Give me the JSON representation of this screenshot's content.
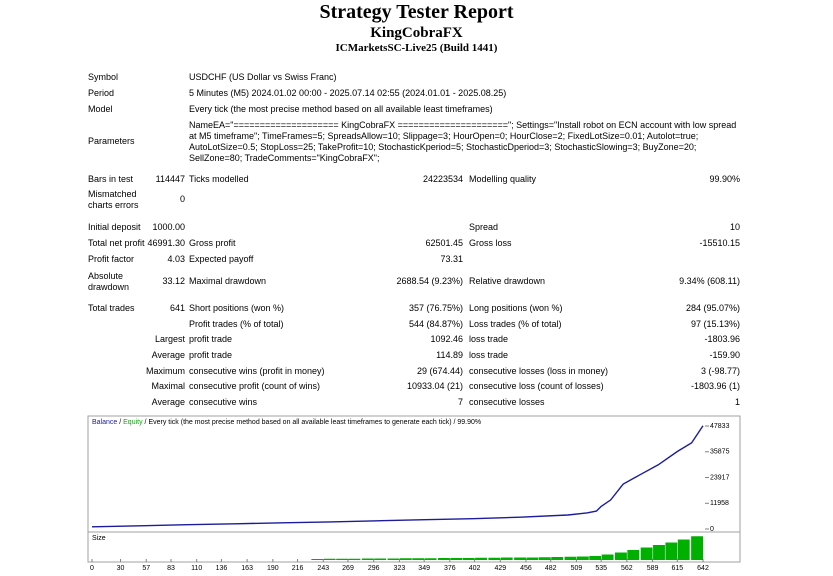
{
  "header": {
    "title": "Strategy Tester Report",
    "expert": "KingCobraFX",
    "server": "ICMarketsSC-Live25 (Build 1441)"
  },
  "table": {
    "rows": [
      {
        "label": "Symbol",
        "text": "USDCHF (US Dollar vs Swiss Franc)"
      },
      {
        "label": "Period",
        "text": "5 Minutes (M5) 2024.01.02 00:00 - 2025.07.14 02:55 (2024.01.01 - 2025.08.25)"
      },
      {
        "label": "Model",
        "text": "Every tick (the most precise method based on all available least timeframes)"
      },
      {
        "label": "Parameters",
        "text": "NameEA=\"==================== KingCobraFX =====================\"; Settings=\"Install robot on ECN account with low spread at M5 timeframe\"; TimeFrames=5; SpreadsAllow=10; Slippage=3; HourOpen=0; HourClose=2; FixedLotSize=0.01; Autolot=true; AutoLotSize=0.5; StopLoss=25; TakeProfit=10; StochasticKperiod=5; StochasticDperiod=3; StochasticSlowing=3; BuyZone=20; SellZone=80; TradeComments=\"KingCobraFX\";"
      },
      {
        "label": "Bars in test",
        "value": "114447",
        "label2": "Ticks modelled",
        "value2": "24223534",
        "label3": "Modelling quality",
        "value3": "99.90%"
      },
      {
        "label": "Mismatched charts errors",
        "value": "0"
      },
      {
        "label": "Initial deposit",
        "value": "1000.00",
        "label3": "Spread",
        "value3": "10"
      },
      {
        "label": "Total net profit",
        "value": "46991.30",
        "label2": "Gross profit",
        "value2": "62501.45",
        "label3": "Gross loss",
        "value3": "-15510.15"
      },
      {
        "label": "Profit factor",
        "value": "4.03",
        "label2": "Expected payoff",
        "value2": "73.31"
      },
      {
        "label": "Absolute drawdown",
        "value": "33.12",
        "label2": "Maximal drawdown",
        "value2": "2688.54 (9.23%)",
        "label3": "Relative drawdown",
        "value3": "9.34% (608.11)"
      },
      {
        "label": "Total trades",
        "value": "641",
        "label2": "Short positions (won %)",
        "value2": "357 (76.75%)",
        "label3": "Long positions (won %)",
        "value3": "284 (95.07%)"
      },
      {
        "label2": "Profit trades (% of total)",
        "value2": "544 (84.87%)",
        "label3": "Loss trades (% of total)",
        "value3": "97 (15.13%)"
      },
      {
        "prefix": "Largest",
        "label2": "profit trade",
        "value2": "1092.46",
        "label3": "loss trade",
        "value3": "-1803.96"
      },
      {
        "prefix": "Average",
        "label2": "profit trade",
        "value2": "114.89",
        "label3": "loss trade",
        "value3": "-159.90"
      },
      {
        "prefix": "Maximum",
        "label2": "consecutive wins (profit in money)",
        "value2": "29 (674.44)",
        "label3": "consecutive losses (loss in money)",
        "value3": "3 (-98.77)"
      },
      {
        "prefix": "Maximal",
        "label2": "consecutive profit (count of wins)",
        "value2": "10933.04 (21)",
        "label3": "consecutive loss (count of losses)",
        "value3": "-1803.96 (1)"
      },
      {
        "prefix": "Average",
        "label2": "consecutive wins",
        "value2": "7",
        "label3": "consecutive losses",
        "value3": "1"
      }
    ]
  },
  "chart_data": {
    "type": "line",
    "legend": [
      "Balance",
      "Equity",
      "Every tick (the most precise method based on all available least timeframes to generate each tick)",
      "99.90%"
    ],
    "x": [
      0,
      50,
      100,
      150,
      200,
      250,
      300,
      350,
      400,
      450,
      500,
      520,
      530,
      535,
      545,
      558,
      575,
      595,
      615,
      630,
      642
    ],
    "series": [
      {
        "name": "Balance",
        "color": "#1c1c9c",
        "values": [
          1000,
          1500,
          2000,
          2400,
          2900,
          3300,
          3800,
          4300,
          4800,
          5500,
          6500,
          7500,
          8300,
          10500,
          13500,
          20800,
          25000,
          29800,
          36000,
          40000,
          47991
        ]
      }
    ],
    "equity_color": "#00b000",
    "xlim": [
      0,
      642
    ],
    "xticks": [
      0,
      30,
      57,
      83,
      110,
      136,
      163,
      190,
      216,
      243,
      269,
      296,
      323,
      349,
      376,
      402,
      429,
      456,
      482,
      509,
      535,
      562,
      589,
      615,
      642
    ],
    "ylim": [
      0,
      49700
    ],
    "yticks": [
      0,
      11958,
      23917,
      35875,
      47833
    ],
    "size": {
      "label": "Size",
      "color": "#00b000",
      "ylim": [
        0,
        1
      ],
      "x": [
        243,
        256,
        269,
        282,
        296,
        309,
        323,
        336,
        349,
        362,
        376,
        389,
        402,
        415,
        429,
        442,
        456,
        469,
        482,
        495,
        509,
        522,
        535,
        548,
        562,
        575,
        589,
        602,
        615,
        628,
        642
      ],
      "values": [
        0.04,
        0.05,
        0.05,
        0.05,
        0.06,
        0.06,
        0.06,
        0.07,
        0.07,
        0.07,
        0.08,
        0.08,
        0.08,
        0.09,
        0.09,
        0.1,
        0.1,
        0.1,
        0.11,
        0.12,
        0.13,
        0.14,
        0.16,
        0.22,
        0.3,
        0.4,
        0.5,
        0.6,
        0.7,
        0.82,
        0.95
      ]
    }
  }
}
